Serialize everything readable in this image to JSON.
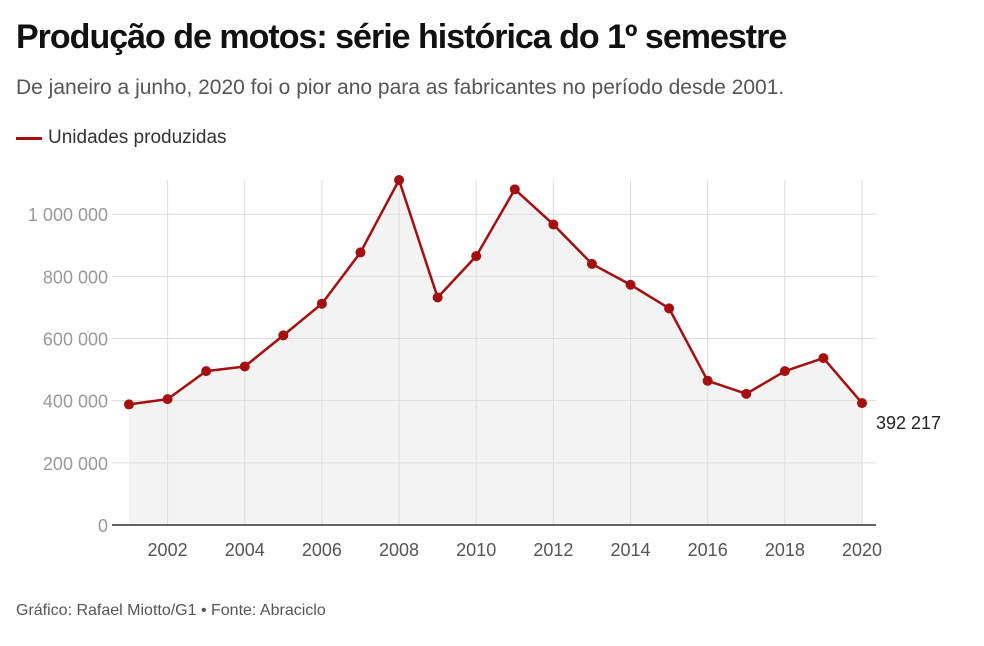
{
  "title": "Produção de motos: série histórica do 1º semestre",
  "subtitle": "De janeiro a junho, 2020 foi o pior ano para as fabricantes no período desde 2001.",
  "credit": "Gráfico: Rafael Miotto/G1 • Fonte: Abraciclo",
  "colors": {
    "line": "#a50f0f",
    "area": "#f3f3f3",
    "grid": "#dddddd",
    "axis": "#333333",
    "tick_text": "#999999",
    "x_tick_text": "#555555"
  },
  "chart_data": {
    "type": "line",
    "x": [
      2001,
      2002,
      2003,
      2004,
      2005,
      2006,
      2007,
      2008,
      2009,
      2010,
      2011,
      2012,
      2013,
      2014,
      2015,
      2016,
      2017,
      2018,
      2019,
      2020
    ],
    "series": [
      {
        "name": "Unidades produzidas",
        "values": [
          388000,
          405000,
          495000,
          510000,
          610000,
          712000,
          877000,
          1110000,
          732000,
          865000,
          1080000,
          967000,
          840000,
          773000,
          697000,
          464000,
          422000,
          495000,
          537000,
          392217
        ]
      }
    ],
    "xticks": [
      "2002",
      "2004",
      "2006",
      "2008",
      "2010",
      "2012",
      "2014",
      "2016",
      "2018",
      "2020"
    ],
    "xtick_values": [
      2002,
      2004,
      2006,
      2008,
      2010,
      2012,
      2014,
      2016,
      2018,
      2020
    ],
    "yticks": [
      "0",
      "200 000",
      "400 000",
      "600 000",
      "800 000",
      "1 000 000"
    ],
    "ytick_values": [
      0,
      200000,
      400000,
      600000,
      800000,
      1000000
    ],
    "ylim": [
      0,
      1110000
    ],
    "xlim": [
      2001,
      2020
    ],
    "annotation": {
      "x": 2020,
      "label": "392 217"
    },
    "grid": true,
    "legend_position": "top-left"
  }
}
